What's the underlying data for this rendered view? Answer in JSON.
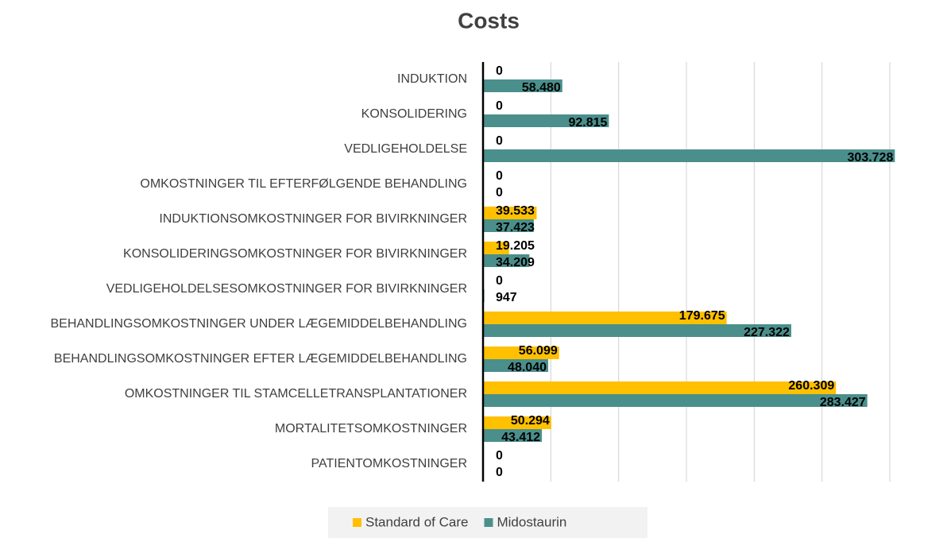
{
  "chart_data": {
    "type": "hbar",
    "title": "Costs",
    "categories": [
      "INDUKTION",
      "KONSOLIDERING",
      "VEDLIGEHOLDELSE",
      "OMKOSTNINGER TIL EFTERFØLGENDE BEHANDLING",
      "INDUKTIONSOMKOSTNINGER FOR BIVIRKNINGER",
      "KONSOLIDERINGSOMKOSTNINGER FOR BIVIRKNINGER",
      "VEDLIGEHOLDELSESOMKOSTNINGER FOR BIVIRKNINGER",
      "BEHANDLINGSOMKOSTNINGER UNDER LÆGEMIDDELBEHANDLING",
      "BEHANDLINGSOMKOSTNINGER EFTER LÆGEMIDDELBEHANDLING",
      "OMKOSTNINGER TIL STAMCELLETRANSPLANTATIONER",
      "MORTALITETSOMKOSTNINGER",
      "PATIENTOMKOSTNINGER"
    ],
    "series": [
      {
        "name": "Standard of Care",
        "color": "#ffc000",
        "values": [
          0,
          0,
          0,
          0,
          39533,
          19205,
          0,
          179675,
          56099,
          260309,
          50294,
          0
        ],
        "value_labels": [
          "0",
          "0",
          "0",
          "0",
          "39.533",
          "19.205",
          "0",
          "179.675",
          "56.099",
          "260.309",
          "50.294",
          "0"
        ]
      },
      {
        "name": "Midostaurin",
        "color": "#4a8f8c",
        "values": [
          58480,
          92815,
          303728,
          0,
          37423,
          34209,
          947,
          227322,
          48040,
          283427,
          43412,
          0
        ],
        "value_labels": [
          "58.480",
          "92.815",
          "303.728",
          "0",
          "37.423",
          "34.209",
          "947",
          "227.322",
          "48.040",
          "283.427",
          "43.412",
          "0"
        ]
      }
    ],
    "xlim": [
      0,
      300000
    ],
    "xticks": [
      0,
      50000,
      100000,
      150000,
      200000,
      250000,
      300000
    ],
    "grid": true,
    "legend": "bottom"
  }
}
